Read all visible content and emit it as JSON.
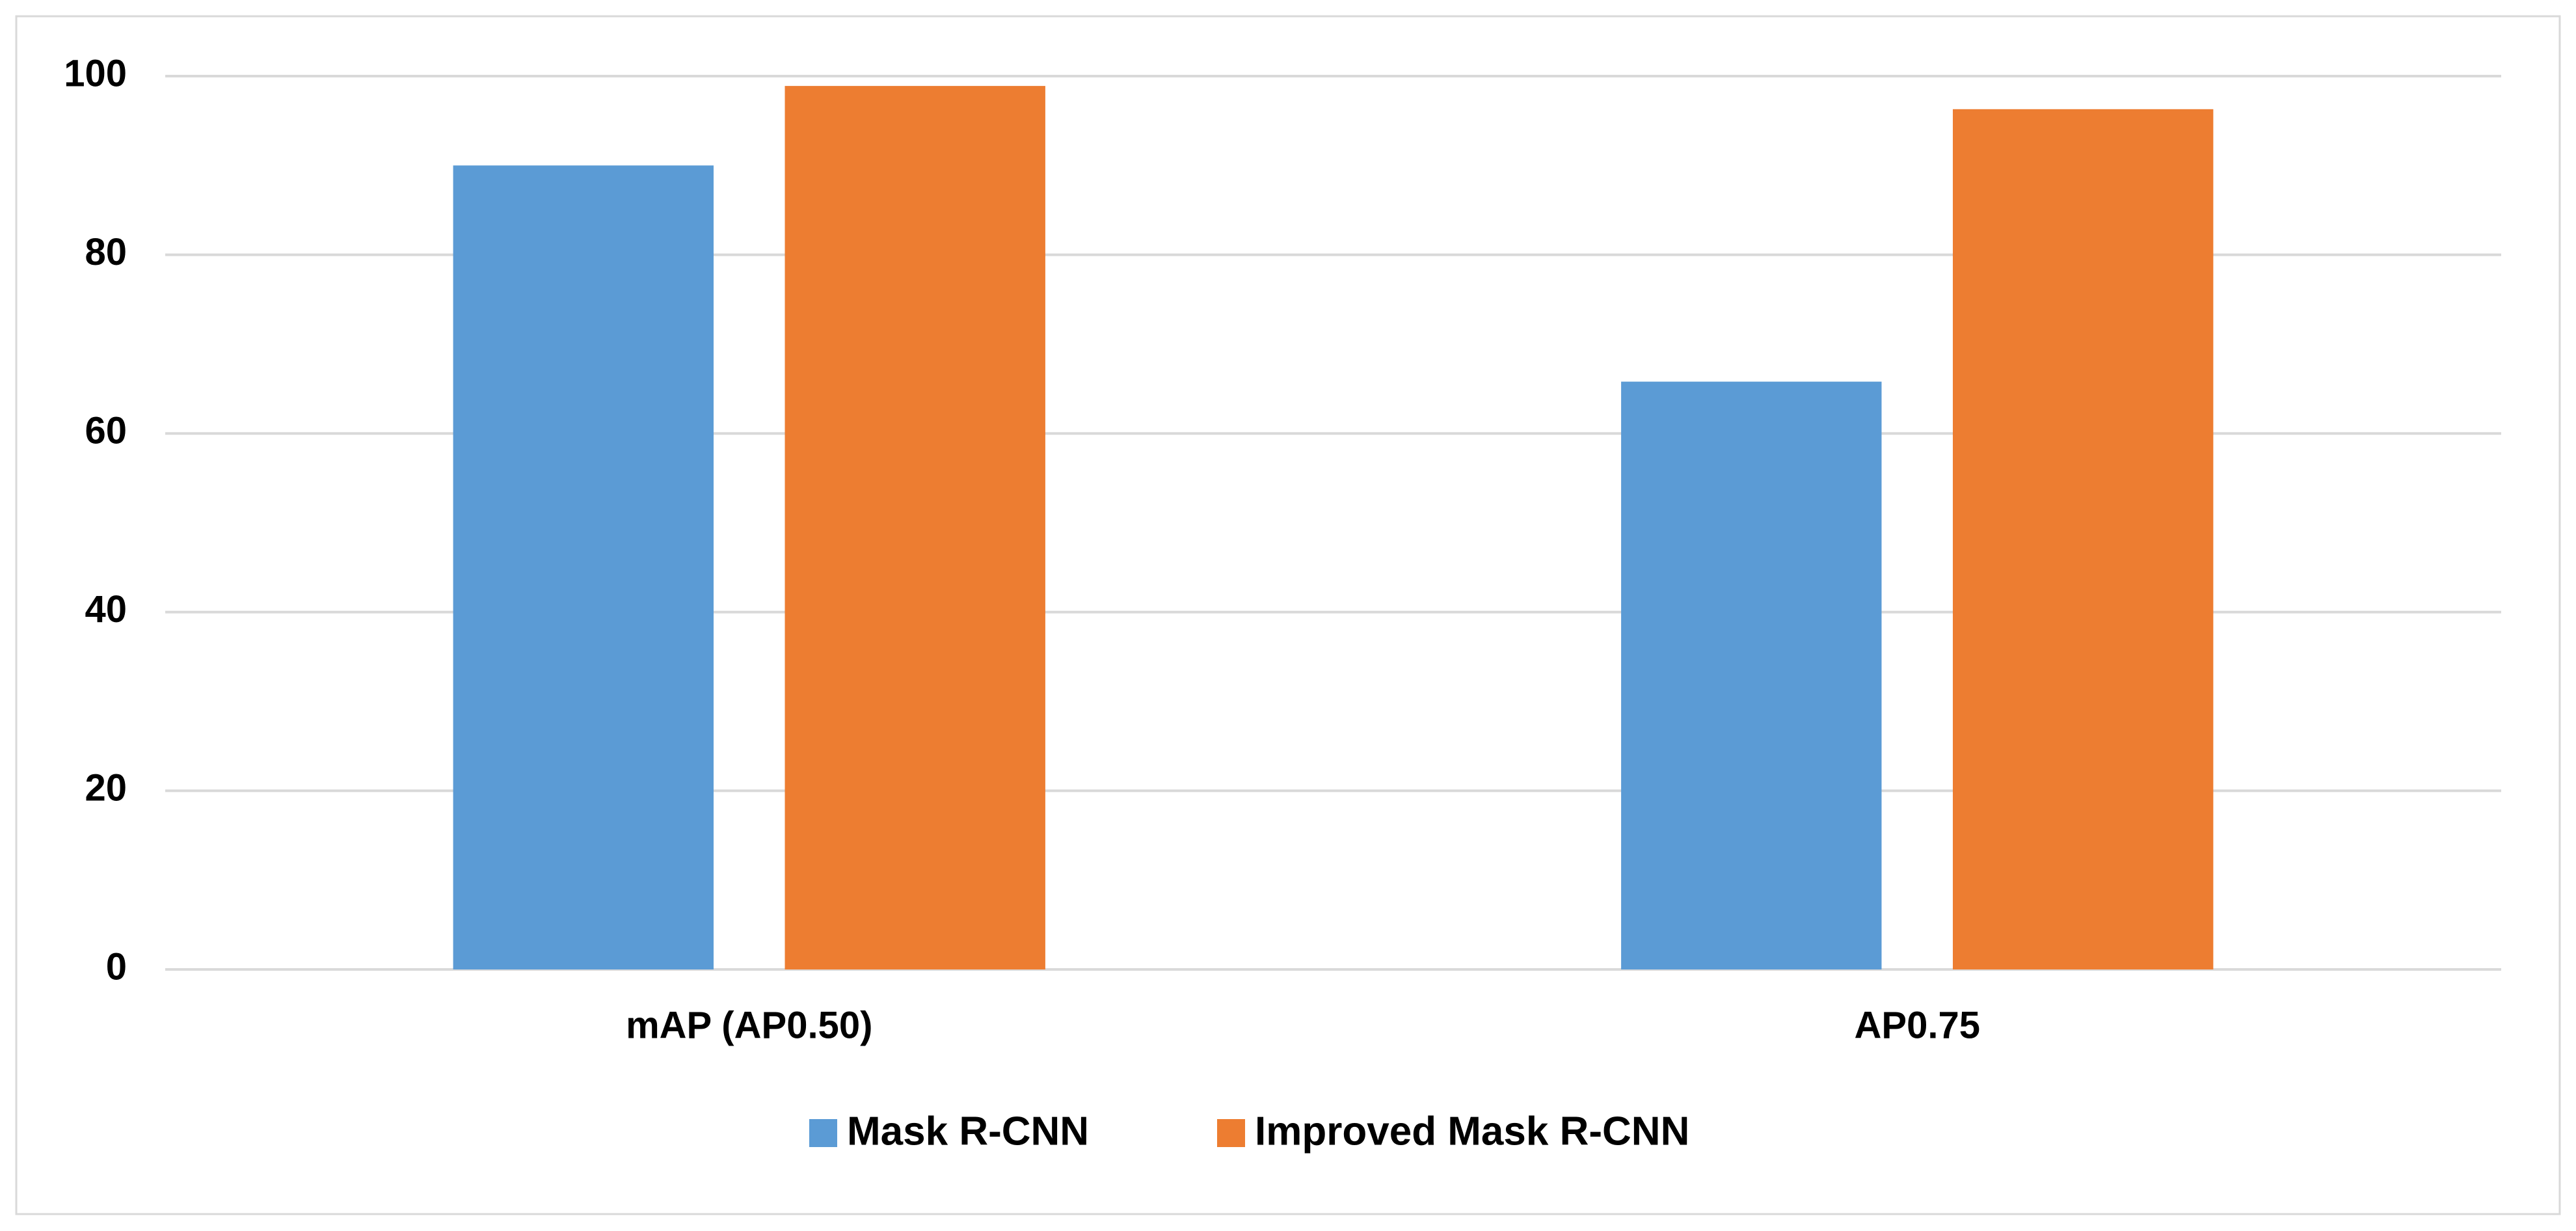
{
  "chart_data": {
    "type": "bar",
    "categories": [
      "mAP (AP0.50)",
      "AP0.75"
    ],
    "series": [
      {
        "name": "Mask R-CNN",
        "color": "#5b9bd5",
        "values": [
          90.0,
          65.8
        ]
      },
      {
        "name": "Improved Mask R-CNN",
        "color": "#ed7d31",
        "values": [
          98.9,
          96.3
        ]
      }
    ],
    "ylim": [
      0,
      100
    ],
    "yticks": [
      0,
      20,
      40,
      60,
      80,
      100
    ],
    "grid": true,
    "legend": "bottom"
  }
}
